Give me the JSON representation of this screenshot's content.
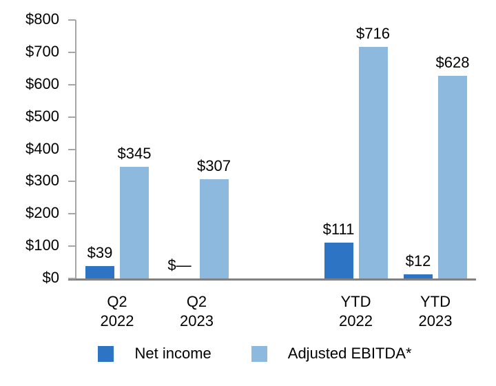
{
  "chart_data": {
    "type": "bar",
    "title": "",
    "categories": [
      {
        "line1": "Q2",
        "line2": "2022"
      },
      {
        "line1": "Q2",
        "line2": "2023"
      },
      {
        "line1": "YTD",
        "line2": "2022"
      },
      {
        "line1": "YTD",
        "line2": "2023"
      }
    ],
    "series": [
      {
        "name": "Net income",
        "color": "#2D74C4",
        "values": [
          39,
          0,
          111,
          12
        ],
        "value_labels": [
          "$39",
          "$—",
          "$111",
          "$12"
        ]
      },
      {
        "name": "Adjusted EBITDA*",
        "color": "#8DB9DF",
        "values": [
          345,
          307,
          716,
          628
        ],
        "value_labels": [
          "$345",
          "$307",
          "$716",
          "$628"
        ]
      }
    ],
    "y_axis": {
      "min": 0,
      "max": 800,
      "step": 100,
      "tick_labels": [
        "$0",
        "$100",
        "$200",
        "$300",
        "$400",
        "$500",
        "$600",
        "$700",
        "$800"
      ]
    },
    "legend_position": "bottom",
    "grid": false,
    "axis_color": "#A6A6A6",
    "baseline_color": "#808080",
    "text_color": "#000000"
  }
}
